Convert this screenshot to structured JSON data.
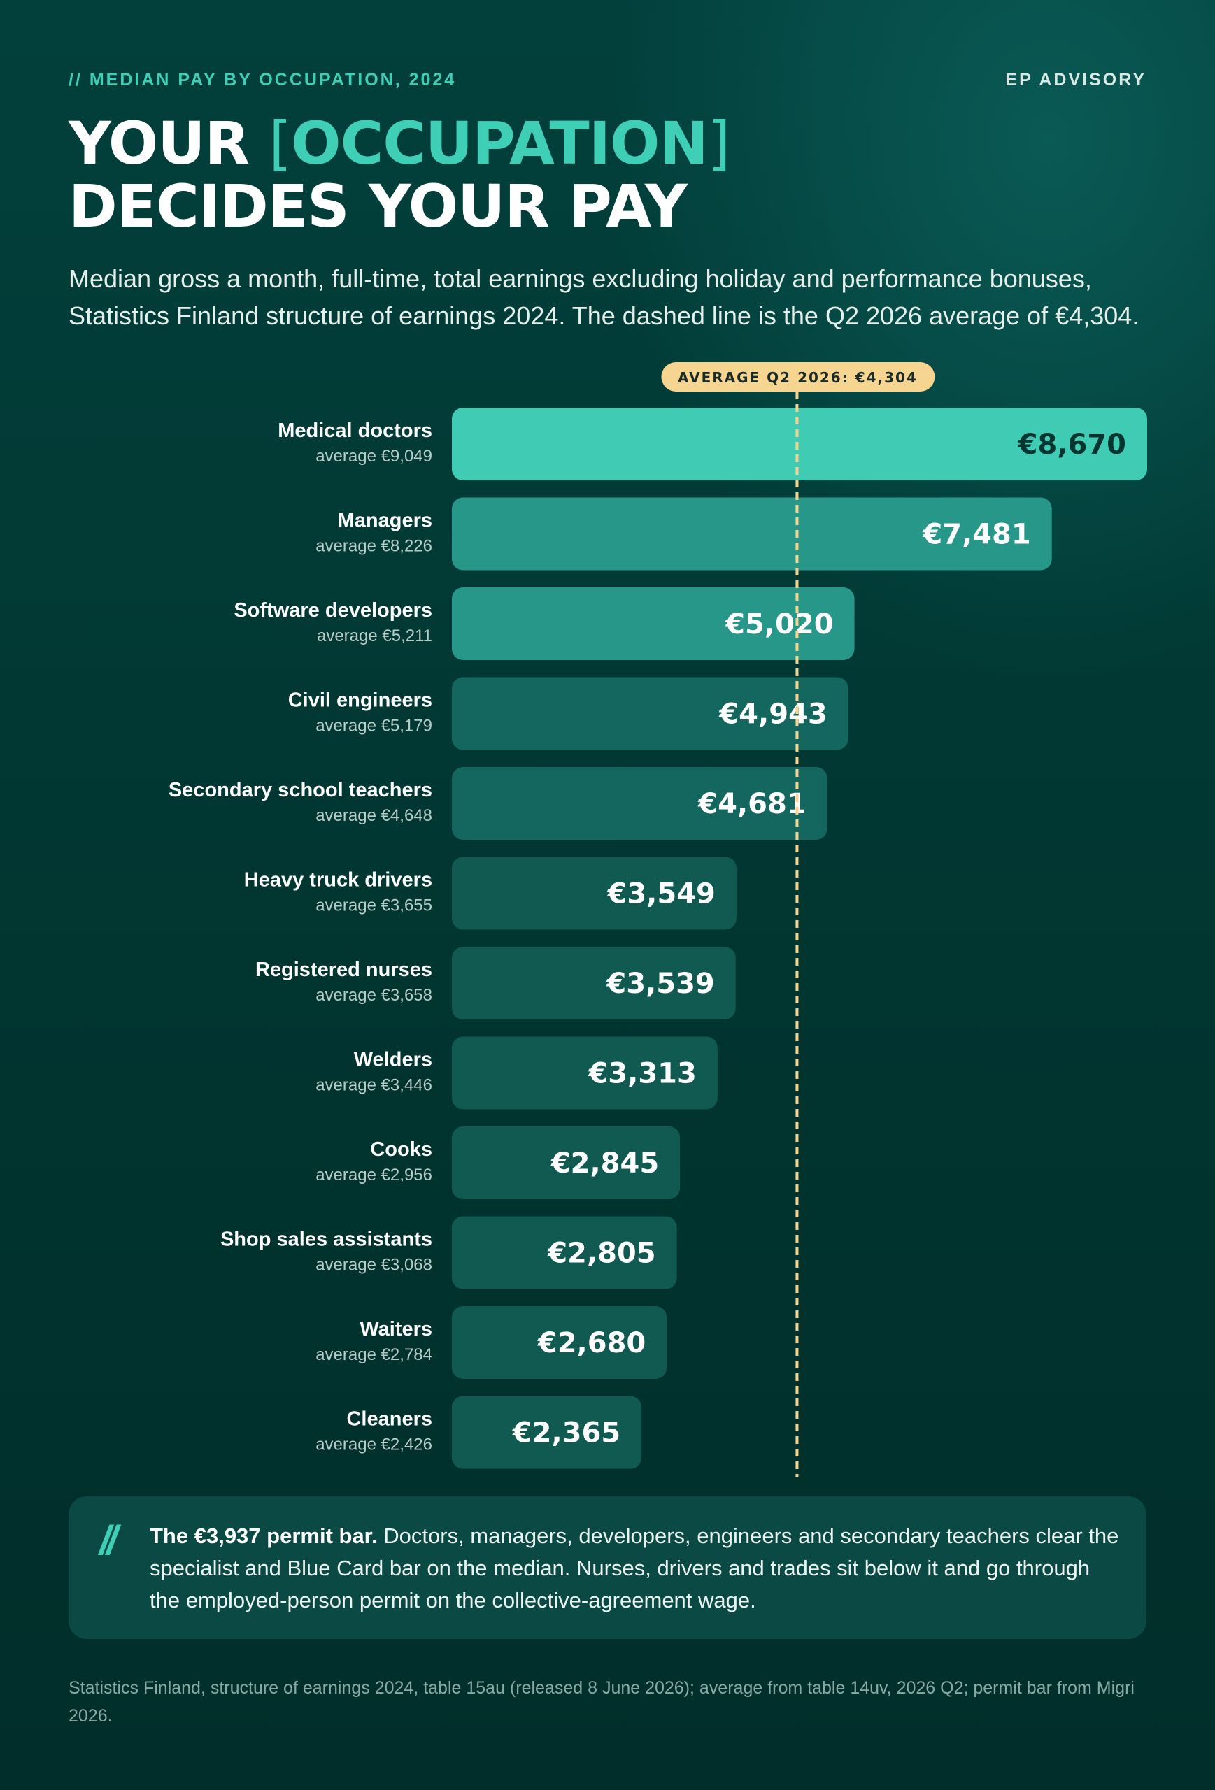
{
  "header": {
    "kicker": "// MEDIAN PAY BY OCCUPATION, 2024",
    "brand": "EP ADVISORY"
  },
  "title": {
    "line1_pre": "YOUR ",
    "bracket_open": "[",
    "highlight": "OCCUPATION",
    "bracket_close": "]",
    "line2": "DECIDES YOUR PAY"
  },
  "subtitle": "Median gross a month, full-time, total earnings excluding holiday and performance bonuses, Statistics Finland structure of earnings 2024. The dashed line is the Q2 2026 average of €4,304.",
  "chart_data": {
    "type": "bar",
    "orientation": "horizontal",
    "categories": [
      "Medical doctors",
      "Managers",
      "Software developers",
      "Civil engineers",
      "Secondary school teachers",
      "Heavy truck drivers",
      "Registered nurses",
      "Welders",
      "Cooks",
      "Shop sales assistants",
      "Waiters",
      "Cleaners"
    ],
    "values": [
      8670,
      7481,
      5020,
      4943,
      4681,
      3549,
      3539,
      3313,
      2845,
      2805,
      2680,
      2365
    ],
    "value_labels": [
      "€8,670",
      "€7,481",
      "€5,020",
      "€4,943",
      "€4,681",
      "€3,549",
      "€3,539",
      "€3,313",
      "€2,845",
      "€2,805",
      "€2,680",
      "€2,365"
    ],
    "secondary_labels": [
      "average €9,049",
      "average €8,226",
      "average €5,211",
      "average €5,179",
      "average €4,648",
      "average €3,655",
      "average €3,658",
      "average €3,446",
      "average €2,956",
      "average €3,068",
      "average €2,784",
      "average €2,426"
    ],
    "xlim": [
      0,
      8670
    ],
    "reference_line": {
      "value": 4304,
      "label": "AVERAGE Q2 2026: €4,304",
      "style": "dashed"
    },
    "grid": false,
    "colors": {
      "top_bar": "#40cbb4",
      "upper_bars": "#27978a",
      "mid_bars": "#14675f",
      "lower_bars": "#115a52",
      "reference": "#f6d591",
      "dark_label": "#053530"
    }
  },
  "callout": {
    "icon": "double-slash-icon",
    "lead": "The €3,937 permit bar.",
    "body": " Doctors, managers, developers, engineers and secondary teachers clear the specialist and Blue Card bar on the median. Nurses, drivers and trades sit below it and go through the employed-person permit on the collective-agreement wage."
  },
  "source": "Statistics Finland, structure of earnings 2024, table 15au (released 8 June 2026); average from table 14uv, 2026 Q2; permit bar from Migri 2026."
}
